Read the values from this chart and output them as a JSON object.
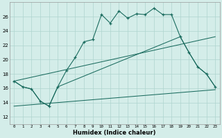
{
  "xlabel": "Humidex (Indice chaleur)",
  "bg_color": "#d4ede9",
  "grid_color": "#aed4ce",
  "line_color": "#1a6b5e",
  "xlim": [
    -0.5,
    23.5
  ],
  "ylim": [
    11,
    28
  ],
  "xticks": [
    0,
    1,
    2,
    3,
    4,
    5,
    6,
    7,
    8,
    9,
    10,
    11,
    12,
    13,
    14,
    15,
    16,
    17,
    18,
    19,
    20,
    21,
    22,
    23
  ],
  "yticks": [
    12,
    14,
    16,
    18,
    20,
    22,
    24,
    26
  ],
  "line1_x": [
    0,
    1,
    2,
    3,
    4,
    5,
    6,
    7,
    8,
    9,
    10,
    11,
    12,
    13,
    14,
    15,
    16,
    17,
    18,
    19,
    20,
    21,
    22,
    23
  ],
  "line1_y": [
    17.0,
    16.2,
    15.9,
    14.2,
    13.5,
    16.2,
    18.5,
    20.3,
    22.5,
    22.8,
    26.3,
    25.1,
    26.8,
    25.8,
    26.4,
    26.3,
    27.2,
    26.3,
    26.3,
    23.2,
    21.0,
    19.0,
    18.0,
    16.2
  ],
  "line2_x": [
    0,
    1,
    2,
    3,
    4,
    5,
    19,
    20,
    21,
    22,
    23
  ],
  "line2_y": [
    17.0,
    16.2,
    15.9,
    14.2,
    13.5,
    16.2,
    23.2,
    21.0,
    19.0,
    18.0,
    16.2
  ],
  "line3_x": [
    0,
    23
  ],
  "line3_y": [
    17.0,
    23.2
  ],
  "line4_x": [
    0,
    23
  ],
  "line4_y": [
    13.5,
    15.8
  ]
}
